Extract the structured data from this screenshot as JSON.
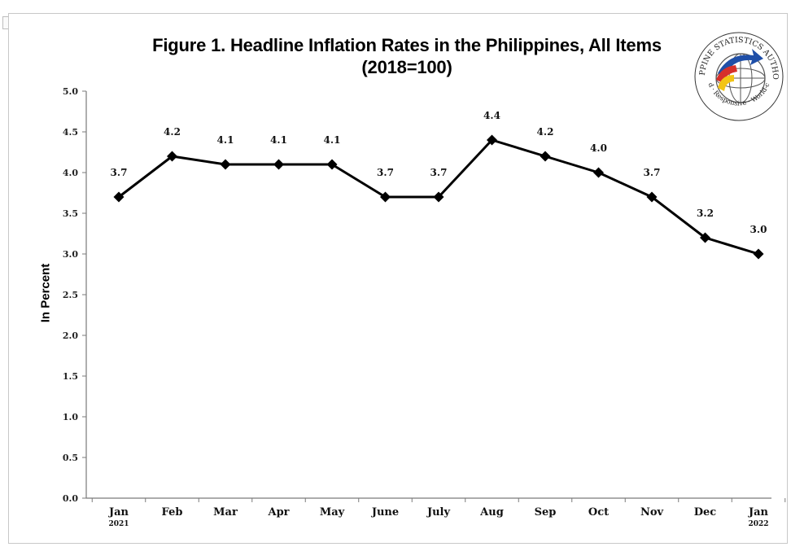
{
  "chart_data": {
    "type": "line",
    "title": "Figure 1. Headline Inflation Rates in the Philippines, All Items",
    "subtitle": "(2018=100)",
    "ylabel": "In Percent",
    "xlabel": "",
    "ylim": [
      0,
      5.0
    ],
    "yticks": [
      "0.0",
      "0.5",
      "1.0",
      "1.5",
      "2.0",
      "2.5",
      "3.0",
      "3.5",
      "4.0",
      "4.5",
      "5.0"
    ],
    "categories": [
      "Jan",
      "Feb",
      "Mar",
      "Apr",
      "May",
      "June",
      "July",
      "Aug",
      "Sep",
      "Oct",
      "Nov",
      "Dec",
      "Jan"
    ],
    "category_years": [
      "2021",
      "",
      "",
      "",
      "",
      "",
      "",
      "",
      "",
      "",
      "",
      "",
      "2022"
    ],
    "values": [
      3.7,
      4.2,
      4.1,
      4.1,
      4.1,
      3.7,
      3.7,
      4.4,
      4.2,
      4.0,
      3.7,
      3.2,
      3.0
    ],
    "data_labels": [
      "3.7",
      "4.2",
      "4.1",
      "4.1",
      "4.1",
      "3.7",
      "3.7",
      "4.4",
      "4.2",
      "4.0",
      "3.7",
      "3.2",
      "3.0"
    ],
    "grid": false,
    "legend": "none",
    "line_color": "#000000",
    "marker": "diamond"
  },
  "logo": {
    "top_text": "PHILIPPINE STATISTICS AUTHORITY",
    "bottom_text": "Solid · Responsive · World-class",
    "colors": [
      "#1f4fa8",
      "#d6302b",
      "#f2c416"
    ]
  }
}
